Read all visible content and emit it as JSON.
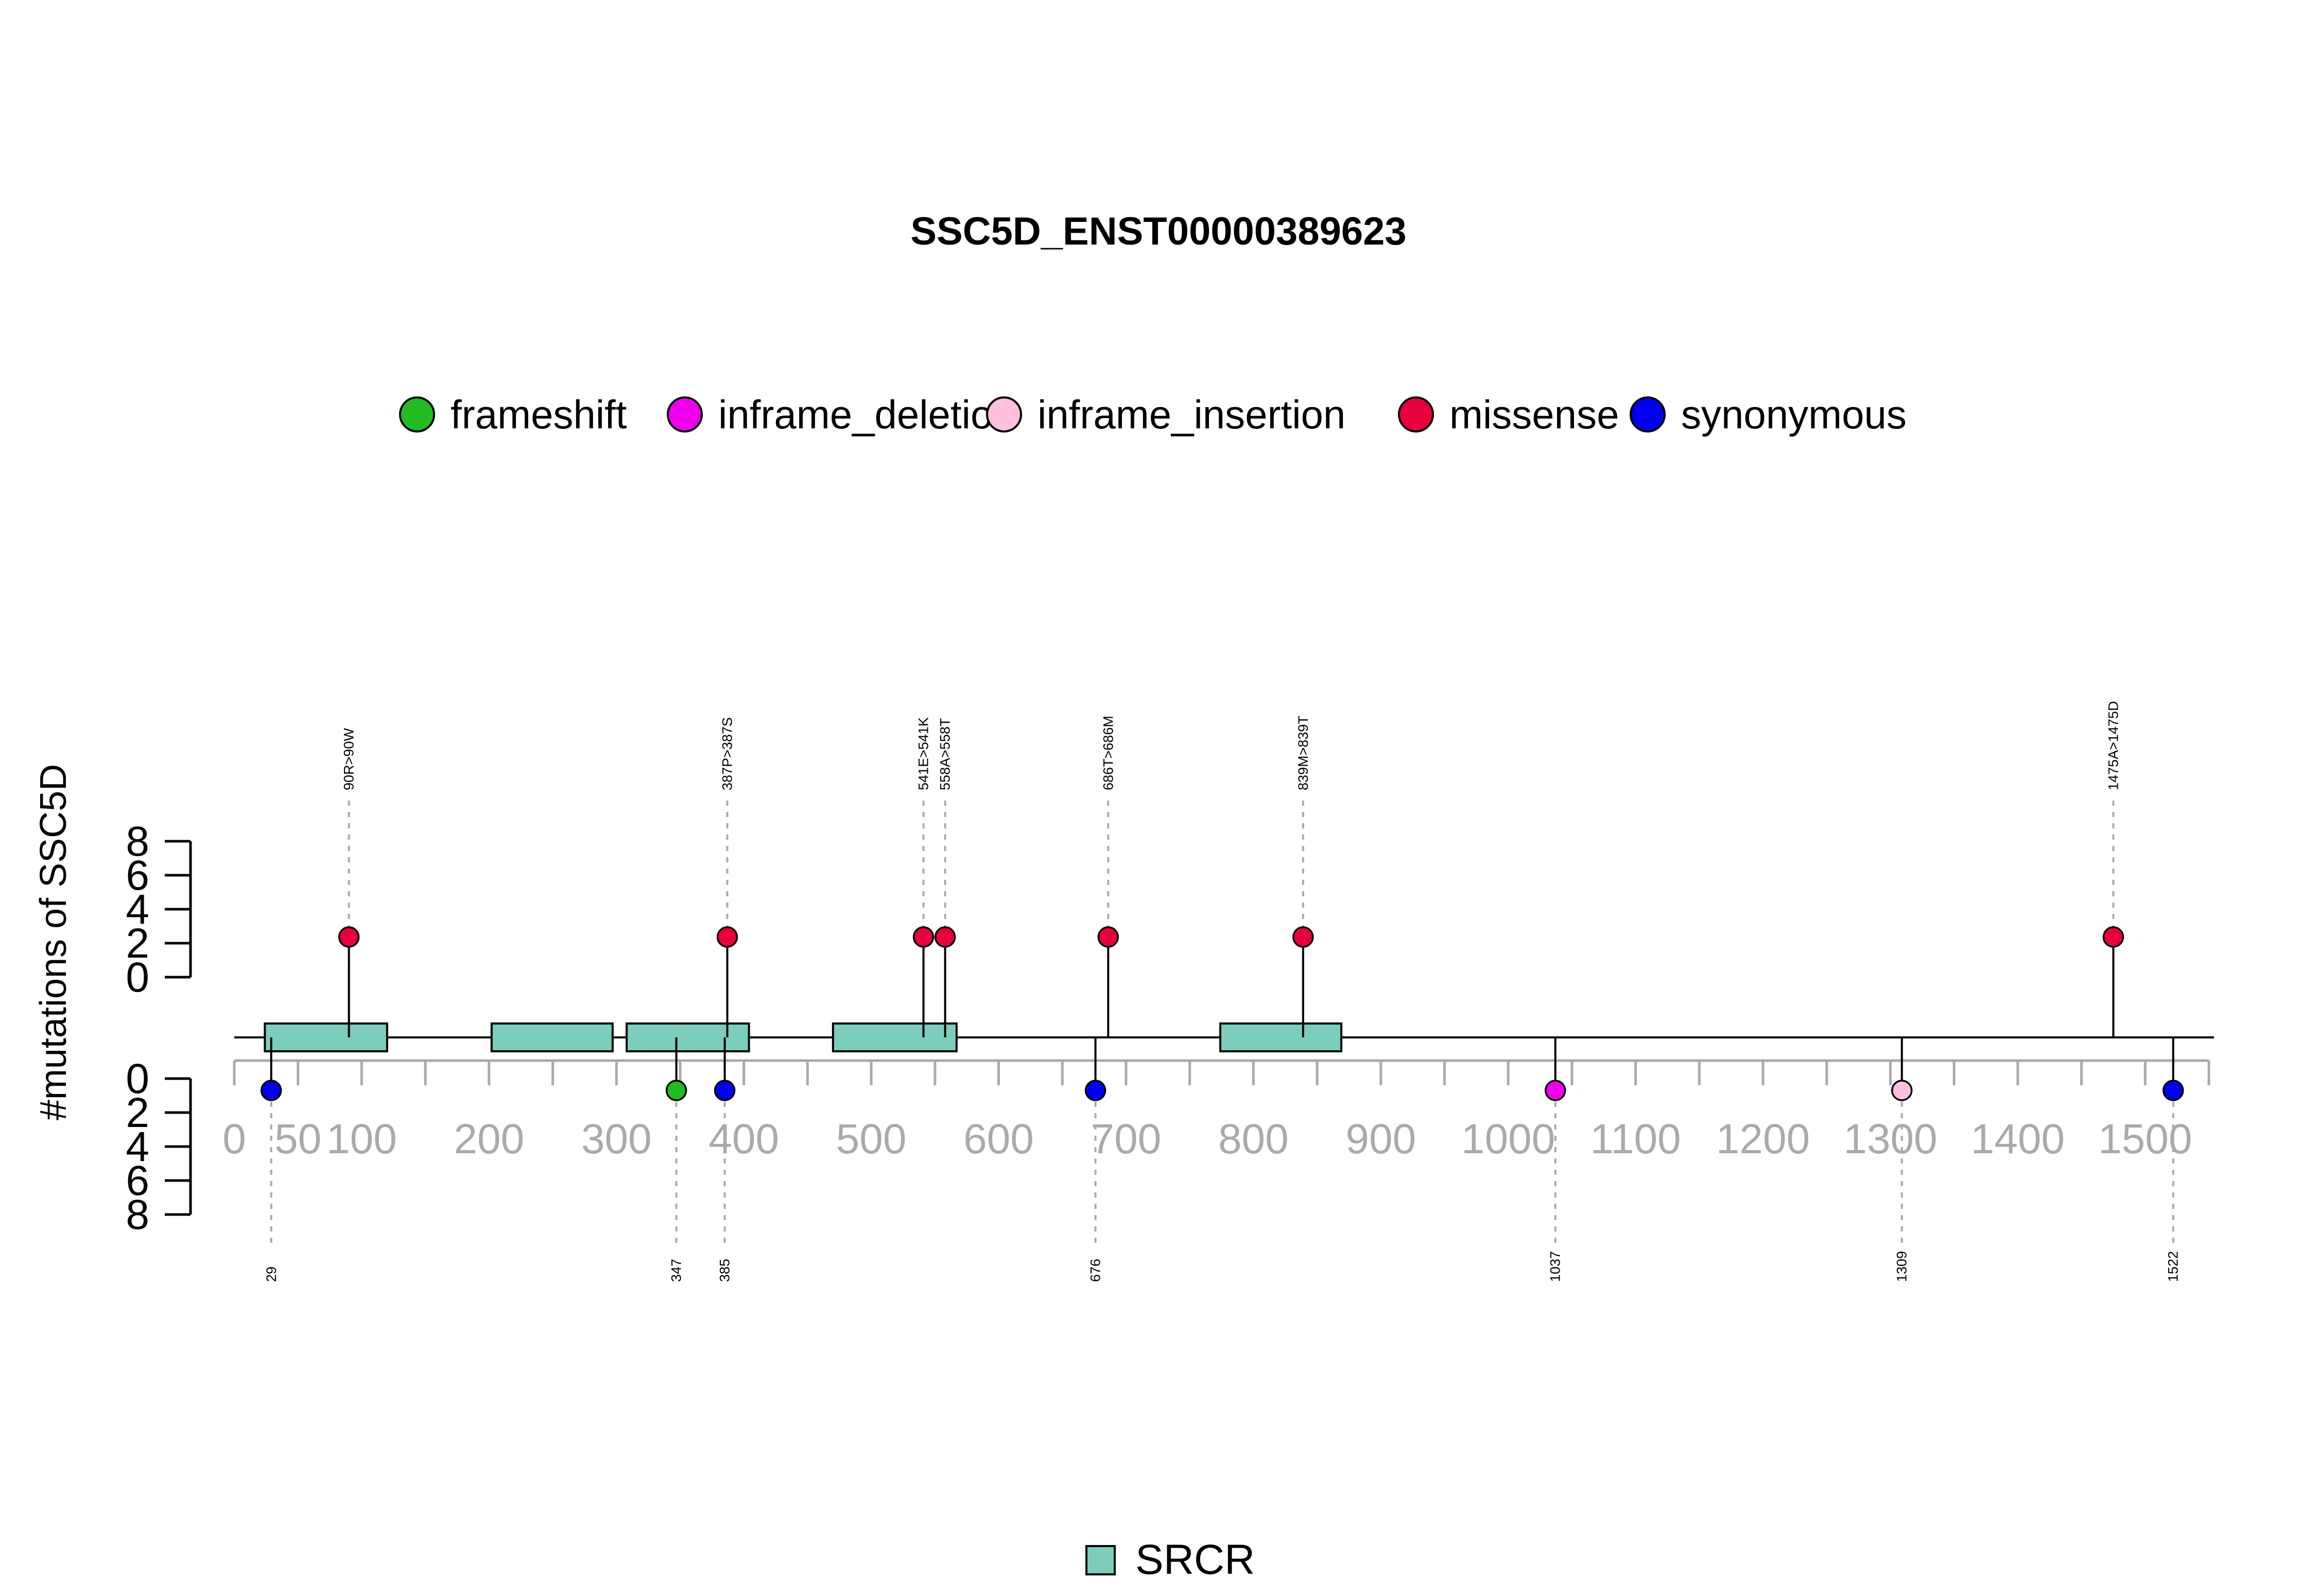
{
  "chart_data": {
    "type": "lollipop",
    "title": "SSC5D_ENST00000389623",
    "ylabel": "#mutations of SSC5D",
    "x_ticks": [
      0,
      50,
      100,
      200,
      300,
      400,
      500,
      600,
      700,
      800,
      900,
      1000,
      1100,
      1200,
      1300,
      1400,
      1500
    ],
    "x_range": [
      0,
      1550
    ],
    "y_ticks_top": [
      0,
      2,
      4,
      6,
      8
    ],
    "y_ticks_bottom": [
      0,
      2,
      4,
      6,
      8
    ],
    "y_range": [
      0,
      8
    ],
    "legend": [
      {
        "label": "frameshift",
        "color": "#22bb22"
      },
      {
        "label": "inframe_deletion",
        "color": "#ee00ee"
      },
      {
        "label": "inframe_insertion",
        "color": "#ffc0e0"
      },
      {
        "label": "missense",
        "color": "#e8003c"
      },
      {
        "label": "synonymous",
        "color": "#0000ee"
      }
    ],
    "domain_legend": [
      {
        "label": "SRCR",
        "color": "#7ccdbb"
      }
    ],
    "domains": [
      {
        "name": "SRCR",
        "start": 24,
        "end": 120
      },
      {
        "name": "SRCR",
        "start": 202,
        "end": 297
      },
      {
        "name": "SRCR",
        "start": 308,
        "end": 404
      },
      {
        "name": "SRCR",
        "start": 470,
        "end": 567
      },
      {
        "name": "SRCR",
        "start": 774,
        "end": 869
      }
    ],
    "top_mutations": [
      {
        "pos": 90,
        "label": "90R>90W",
        "type": "missense",
        "count": 1
      },
      {
        "pos": 387,
        "label": "387P>387S",
        "type": "missense",
        "count": 1
      },
      {
        "pos": 541,
        "label": "541E>541K",
        "type": "missense",
        "count": 1
      },
      {
        "pos": 558,
        "label": "558A>558T",
        "type": "missense",
        "count": 1
      },
      {
        "pos": 686,
        "label": "686T>686M",
        "type": "missense",
        "count": 1
      },
      {
        "pos": 839,
        "label": "839M>839T",
        "type": "missense",
        "count": 1
      },
      {
        "pos": 1475,
        "label": "1475A>1475D",
        "type": "missense",
        "count": 1
      }
    ],
    "bottom_mutations": [
      {
        "pos": 29,
        "label": "29",
        "type": "synonymous",
        "count": 1
      },
      {
        "pos": 347,
        "label": "347",
        "type": "frameshift",
        "count": 1
      },
      {
        "pos": 385,
        "label": "385",
        "type": "synonymous",
        "count": 1
      },
      {
        "pos": 676,
        "label": "676",
        "type": "synonymous",
        "count": 1
      },
      {
        "pos": 1037,
        "label": "1037",
        "type": "inframe_deletion",
        "count": 1
      },
      {
        "pos": 1309,
        "label": "1309",
        "type": "inframe_insertion",
        "count": 1
      },
      {
        "pos": 1522,
        "label": "1522",
        "type": "synonymous",
        "count": 1
      }
    ]
  }
}
